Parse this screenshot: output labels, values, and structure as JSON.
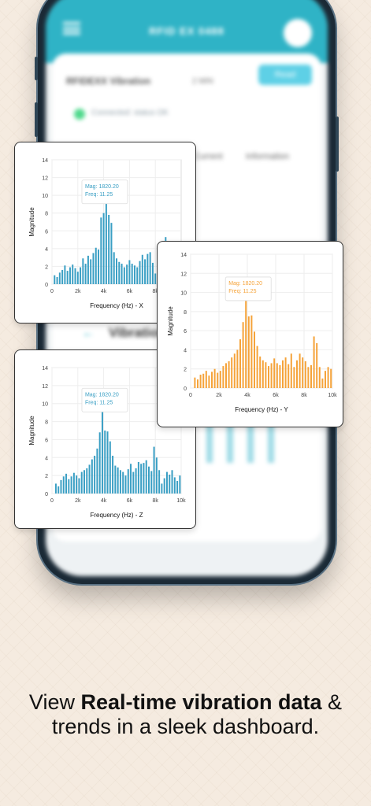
{
  "app": {
    "header_title": "RFID EX 0488",
    "device_name": "RFIDEXX Vibration",
    "range_label": "2 MIN",
    "read_button": "Read",
    "status_text": "Connected: status OK",
    "tab_current": "Current",
    "tab_info": "Information",
    "vibration_heading": "Vibration"
  },
  "caption": {
    "prefix": "View ",
    "bold": "Real-time vibration data",
    "suffix": " & trends in a sleek dashboard."
  },
  "colors": {
    "blue_series": "#3a9fc4",
    "orange_series": "#f5a33a",
    "background": "#f5ebe0",
    "app_header": "#2fb3c6"
  },
  "chart_data": [
    {
      "type": "bar",
      "axis": "x",
      "xlabel": "Frequency (Hz) - X",
      "ylabel": "Magnitude",
      "xlim": [
        0,
        10000
      ],
      "ylim": [
        0,
        14
      ],
      "xticks": [
        "0",
        "2k",
        "4k",
        "6k",
        "8k"
      ],
      "yticks": [
        "0",
        "2",
        "4",
        "6",
        "8",
        "10",
        "12",
        "14"
      ],
      "annotation": {
        "mag": "Mag: 1820.20",
        "freq": "Freq: 11.25"
      },
      "x": [
        200,
        400,
        600,
        800,
        1000,
        1200,
        1400,
        1600,
        1800,
        2000,
        2200,
        2400,
        2600,
        2800,
        3000,
        3200,
        3400,
        3600,
        3800,
        4000,
        4200,
        4400,
        4600,
        4800,
        5000,
        5200,
        5400,
        5600,
        5800,
        6000,
        6200,
        6400,
        6600,
        6800,
        7000,
        7200,
        7400,
        7600,
        7800,
        8000,
        8200,
        8400,
        8600,
        8800
      ],
      "values": [
        1.0,
        0.8,
        1.3,
        1.6,
        2.1,
        1.5,
        1.9,
        2.2,
        1.8,
        1.4,
        1.9,
        2.9,
        2.3,
        3.2,
        2.8,
        3.5,
        4.1,
        3.9,
        7.5,
        8.0,
        9.3,
        7.8,
        6.9,
        3.6,
        2.9,
        2.5,
        2.3,
        1.9,
        2.2,
        2.7,
        2.3,
        2.1,
        1.9,
        2.6,
        3.3,
        2.8,
        3.4,
        3.6,
        2.4,
        1.2,
        2.2,
        2.8,
        3.6,
        5.3
      ]
    },
    {
      "type": "bar",
      "axis": "y",
      "xlabel": "Frequency (Hz) - Y",
      "ylabel": "Magnitude",
      "xlim": [
        0,
        10000
      ],
      "ylim": [
        0,
        14
      ],
      "xticks": [
        "0",
        "2k",
        "4k",
        "6k",
        "8k",
        "10k"
      ],
      "yticks": [
        "0",
        "2",
        "4",
        "6",
        "8",
        "10",
        "12",
        "14"
      ],
      "annotation": {
        "mag": "Mag: 1820.20",
        "freq": "Freq: 11.25"
      },
      "x": [
        300,
        500,
        700,
        900,
        1100,
        1300,
        1500,
        1700,
        1900,
        2100,
        2300,
        2500,
        2700,
        2900,
        3100,
        3300,
        3500,
        3700,
        3900,
        4100,
        4300,
        4500,
        4700,
        4900,
        5100,
        5300,
        5500,
        5700,
        5900,
        6100,
        6300,
        6500,
        6700,
        6900,
        7100,
        7300,
        7500,
        7700,
        7900,
        8100,
        8300,
        8500,
        8700,
        8900,
        9100,
        9300,
        9500,
        9700,
        9900
      ],
      "values": [
        1.1,
        0.9,
        1.4,
        1.5,
        1.8,
        1.3,
        1.7,
        2.0,
        1.6,
        1.8,
        2.3,
        2.6,
        2.8,
        3.2,
        3.6,
        4.0,
        5.1,
        6.9,
        9.2,
        7.5,
        7.6,
        5.9,
        4.4,
        3.3,
        2.9,
        2.7,
        2.3,
        2.6,
        3.1,
        2.6,
        2.4,
        2.9,
        3.2,
        2.5,
        3.6,
        2.2,
        2.9,
        3.6,
        3.2,
        2.8,
        2.2,
        2.4,
        5.4,
        4.7,
        2.2,
        1.0,
        1.8,
        2.2,
        2.0
      ]
    },
    {
      "type": "bar",
      "axis": "z",
      "xlabel": "Frequency (Hz) - Z",
      "ylabel": "Magnitude",
      "xlim": [
        0,
        10000
      ],
      "ylim": [
        0,
        14
      ],
      "xticks": [
        "0",
        "2k",
        "4k",
        "6k",
        "8k",
        "10k"
      ],
      "yticks": [
        "0",
        "2",
        "4",
        "6",
        "8",
        "10",
        "12",
        "14"
      ],
      "annotation": {
        "mag": "Mag: 1820.20",
        "freq": "Freq: 11.25"
      },
      "x": [
        300,
        500,
        700,
        900,
        1100,
        1300,
        1500,
        1700,
        1900,
        2100,
        2300,
        2500,
        2700,
        2900,
        3100,
        3300,
        3500,
        3700,
        3900,
        4100,
        4300,
        4500,
        4700,
        4900,
        5100,
        5300,
        5500,
        5700,
        5900,
        6100,
        6300,
        6500,
        6700,
        6900,
        7100,
        7300,
        7500,
        7700,
        7900,
        8100,
        8300,
        8500,
        8700,
        8900,
        9100,
        9300,
        9500,
        9700,
        9900
      ],
      "values": [
        1.1,
        0.8,
        1.5,
        1.9,
        2.2,
        1.6,
        1.9,
        2.3,
        2.0,
        1.7,
        2.4,
        2.6,
        2.8,
        3.2,
        3.8,
        4.2,
        5.0,
        6.8,
        9.3,
        7.0,
        6.9,
        5.8,
        4.2,
        3.1,
        2.9,
        2.6,
        2.4,
        2.0,
        2.7,
        3.3,
        2.4,
        2.8,
        3.5,
        3.3,
        3.4,
        3.7,
        3.0,
        2.5,
        5.2,
        4.0,
        2.6,
        1.1,
        1.7,
        2.4,
        2.1,
        2.6,
        1.8,
        1.4,
        2.0
      ]
    }
  ]
}
